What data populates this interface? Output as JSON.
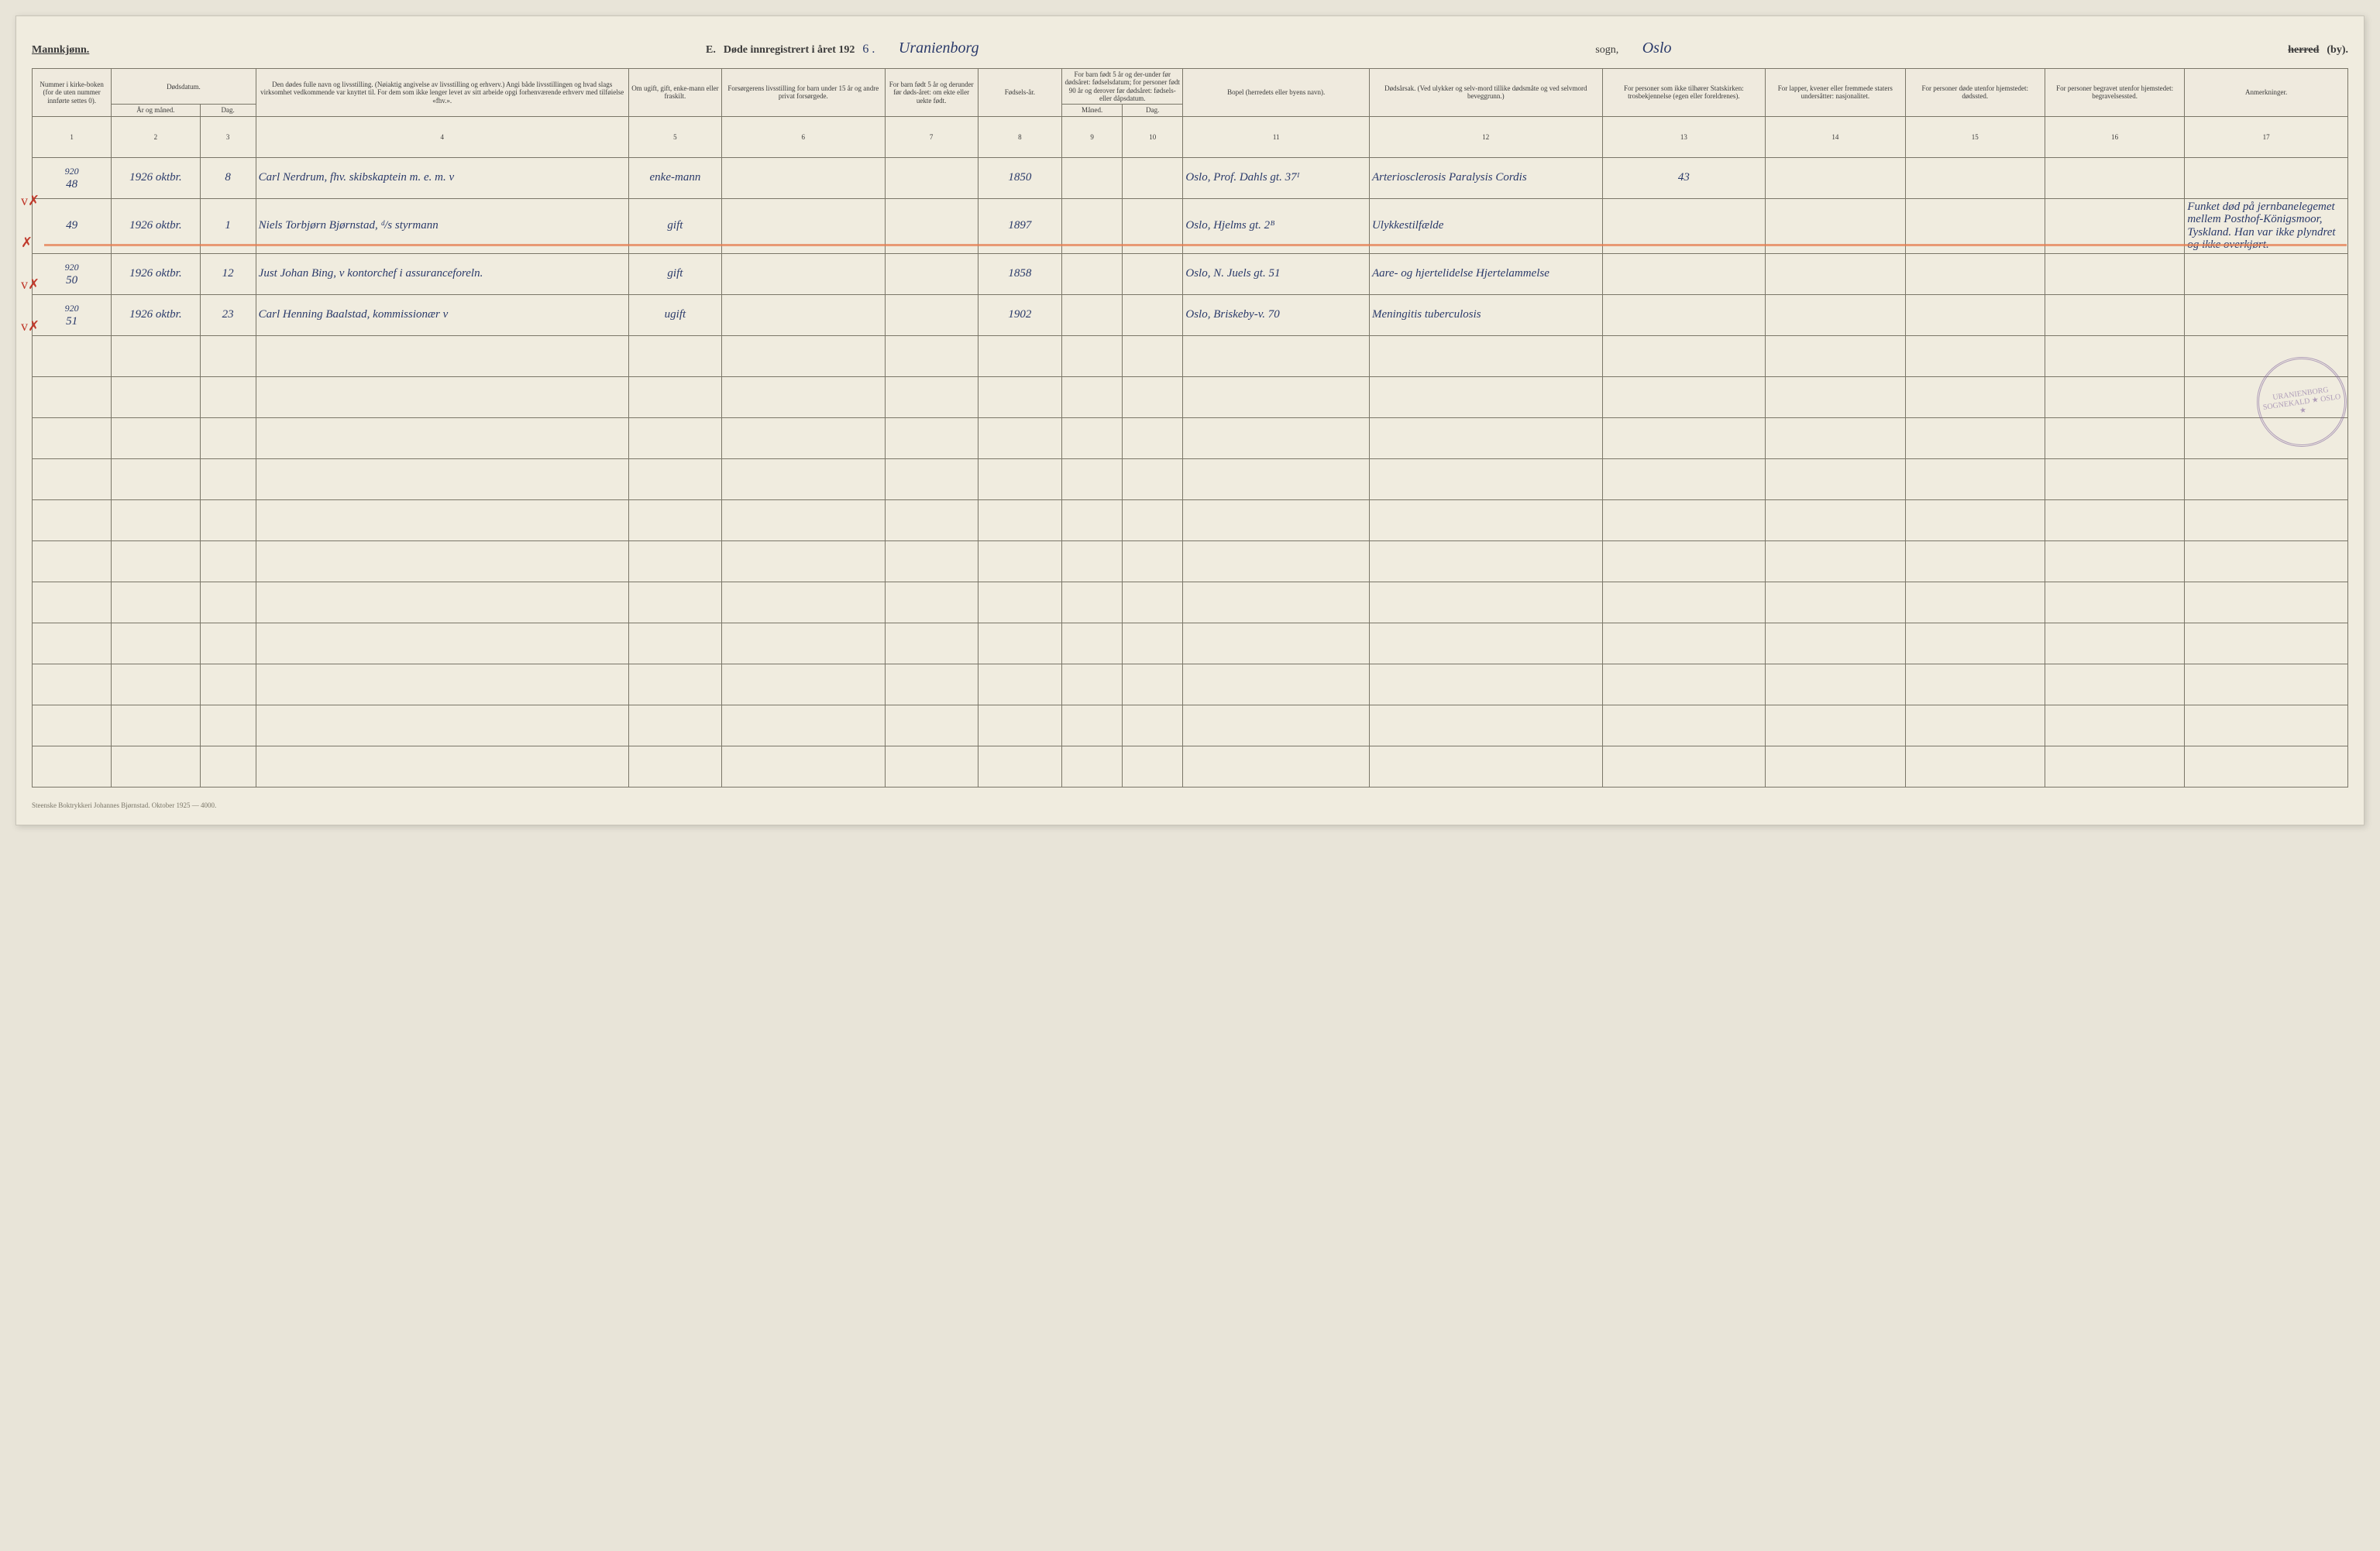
{
  "header": {
    "gender": "Mannkjønn.",
    "section": "E.",
    "title_prefix": "Døde innregistrert i året 192",
    "year_suffix": "6 .",
    "parish": "Uranienborg",
    "sogn_label": "sogn,",
    "city": "Oslo",
    "herred_strike": "herred",
    "by_label": "(by)."
  },
  "columns": {
    "c1": "Nummer i kirke-boken (for de uten nummer innførte settes 0).",
    "c2_3": "Dødsdatum.",
    "c2": "År og måned.",
    "c3": "Dag.",
    "c4": "Den dødes fulle navn og livsstilling. (Nøiaktig angivelse av livsstilling og erhverv.) Angi både livsstillingen og hvad slags virksomhet vedkommende var knyttet til. For dem som ikke lenger levet av sitt arbeide opgi forhenværende erhverv med tilføielse «fhv.».",
    "c5": "Om ugift, gift, enke-mann eller fraskilt.",
    "c6": "Forsørgerens livsstilling for barn under 15 år og andre privat forsørgede.",
    "c7": "For barn født 5 år og derunder før døds-året: om ekte eller uekte født.",
    "c8": "Fødsels-år.",
    "c9_10": "For barn født 5 år og der-under før dødsåret: fødselsdatum; for personer født 90 år og derover før dødsåret: fødsels- eller dåpsdatum.",
    "c9": "Måned.",
    "c10": "Dag.",
    "c11": "Bopel (herredets eller byens navn).",
    "c12": "Dødsårsak. (Ved ulykker og selv-mord tillike dødsmåte og ved selvmord beveggrunn.)",
    "c13": "For personer som ikke tilhører Statskirken: trosbekjennelse (egen eller foreldrenes).",
    "c14": "For lapper, kvener eller fremmede staters undersåtter: nasjonalitet.",
    "c15": "For personer døde utenfor hjemstedet: dødssted.",
    "c16": "For personer begravet utenfor hjemstedet: begravelsessted.",
    "c17": "Anmerkninger."
  },
  "colnums": [
    "1",
    "2",
    "3",
    "4",
    "5",
    "6",
    "7",
    "8",
    "9",
    "10",
    "11",
    "12",
    "13",
    "14",
    "15",
    "16",
    "17"
  ],
  "rows": [
    {
      "marginal": "920",
      "num": "48",
      "year_month": "1926 oktbr.",
      "day": "8",
      "name": "Carl Nerdrum, fhv. skibskaptein m. e. m.  v",
      "status": "enke-mann",
      "c6": "",
      "c7": "",
      "birth": "1850",
      "c9": "",
      "c10": "",
      "residence": "Oslo, Prof. Dahls gt. 37ᴵ",
      "cause": "Arteriosclerosis Paralysis Cordis",
      "c13": "43",
      "c14": "",
      "c15": "",
      "c16": "",
      "c17": ""
    },
    {
      "marginal": "",
      "num": "49",
      "year_month": "1926 oktbr.",
      "day": "1",
      "name": "Niels Torbjørn Bjørnstad, ᵈ/s styrmann",
      "status": "gift",
      "c6": "",
      "c7": "",
      "birth": "1897",
      "c9": "",
      "c10": "",
      "residence": "Oslo, Hjelms gt. 2ᴮ",
      "cause": "Ulykkestilfælde",
      "c13": "",
      "c14": "",
      "c15": "",
      "c16": "",
      "c17": "Funket død på jernbanelegemet mellem Posthof-Königsmoor, Tyskland. Han var ikke plyndret og ikke overkjørt."
    },
    {
      "marginal": "920",
      "num": "50",
      "year_month": "1926 oktbr.",
      "day": "12",
      "name": "Just Johan Bing,  v kontorchef i assuranceforeln.",
      "status": "gift",
      "c6": "",
      "c7": "",
      "birth": "1858",
      "c9": "",
      "c10": "",
      "residence": "Oslo, N. Juels gt. 51",
      "cause": "Aare- og hjertelidelse Hjertelammelse",
      "c13": "",
      "c14": "",
      "c15": "",
      "c16": "",
      "c17": ""
    },
    {
      "marginal": "920",
      "num": "51",
      "year_month": "1926 oktbr.",
      "day": "23",
      "name": "Carl Henning Baalstad, kommissionær  v",
      "status": "ugift",
      "c6": "",
      "c7": "",
      "birth": "1902",
      "c9": "",
      "c10": "",
      "residence": "Oslo, Briskeby-v. 70",
      "cause": "Meningitis tuberculosis",
      "c13": "",
      "c14": "",
      "c15": "",
      "c16": "",
      "c17": ""
    }
  ],
  "blank_rows": 11,
  "stamp": "URANIENBORG SOGNEKALD ★ OSLO ★",
  "footer": "Steenske Boktrykkeri Johannes Bjørnstad. Oktober 1925 — 4000.",
  "style": {
    "col_widths_pct": [
      3.4,
      3.8,
      2.4,
      16,
      4,
      7,
      4,
      3.6,
      2.6,
      2.6,
      8,
      10,
      7,
      6,
      6,
      6,
      7
    ],
    "ink_color": "#2a3a6a",
    "red_mark_color": "#c0392b",
    "orange_stroke": "#e67e50",
    "stamp_color": "#7a5d9a",
    "page_bg": "#f0ecdf",
    "border_color": "#7a7668"
  }
}
